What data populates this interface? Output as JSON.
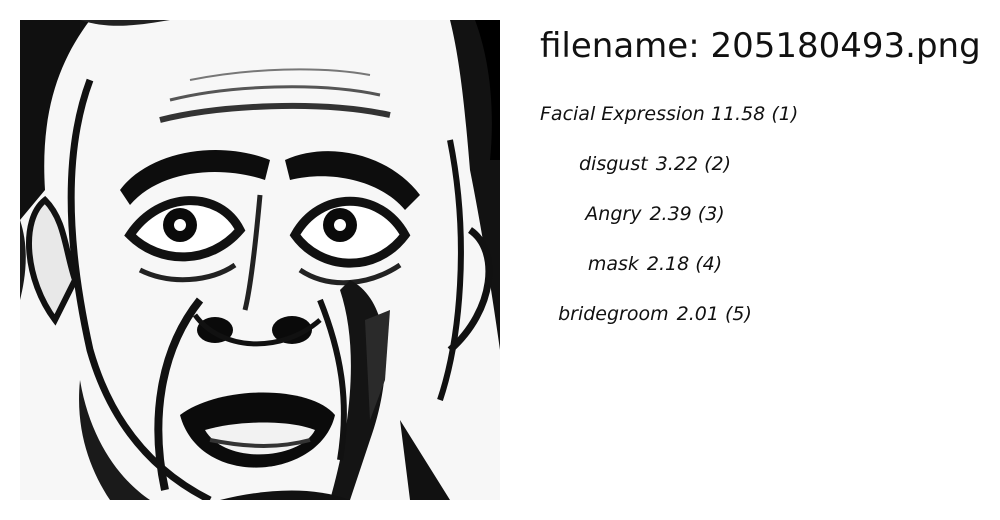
{
  "filename": "filename: 205180493.png",
  "image": {
    "subject": "comic-style drawing of a frightened man's face"
  },
  "labels": [
    {
      "name": "Facial Expression",
      "score": "11.58",
      "rank": "(1)"
    },
    {
      "name": "disgust",
      "score": "3.22",
      "rank": "(2)"
    },
    {
      "name": "Angry",
      "score": "2.39",
      "rank": "(3)"
    },
    {
      "name": "mask",
      "score": "2.18",
      "rank": "(4)"
    },
    {
      "name": "bridegroom",
      "score": "2.01",
      "rank": "(5)"
    }
  ]
}
